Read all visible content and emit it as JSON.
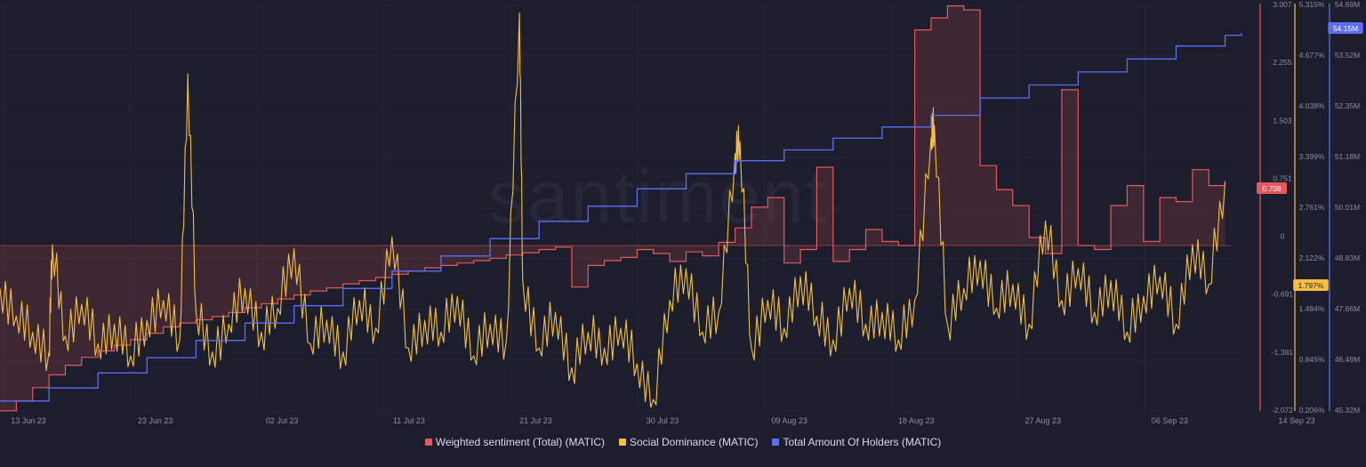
{
  "chart_data": {
    "type": "line",
    "watermark": "santiment",
    "x_ticks": [
      "13 Jun 23",
      "23 Jun 23",
      "02 Jul 23",
      "11 Jul 23",
      "21 Jul 23",
      "30 Jul 23",
      "09 Aug 23",
      "18 Aug 23",
      "27 Aug 23",
      "06 Sep 23",
      "14 Sep 23"
    ],
    "x_range": [
      "13 Jun 23",
      "14 Sep 23"
    ],
    "axes": {
      "sentiment": {
        "ticks": [
          "3.007",
          "2.255",
          "1.503",
          "0.751",
          "0",
          "-0.691",
          "-1.381",
          "-2.072"
        ],
        "range": [
          -2.072,
          3.007
        ],
        "color": "#e5585a"
      },
      "dominance": {
        "ticks": [
          "5.315%",
          "4.677%",
          "4.038%",
          "3.399%",
          "2.761%",
          "2.122%",
          "1.484%",
          "0.845%",
          "0.206%"
        ],
        "range": [
          0.206,
          5.315
        ],
        "color": "#f5c042"
      },
      "holders": {
        "ticks": [
          "54.69M",
          "53.52M",
          "52.35M",
          "51.18M",
          "50.01M",
          "48.83M",
          "47.66M",
          "46.49M",
          "45.32M"
        ],
        "range": [
          45.32,
          54.69
        ],
        "color": "#5b6ef5"
      }
    },
    "badges": {
      "sentiment": "0.708",
      "dominance": "1.797%",
      "holders": "54.15M"
    },
    "series": [
      {
        "name": "Weighted sentiment (Total) (MATIC)",
        "color": "#e5585a",
        "axis": "sentiment",
        "points": [
          [
            0,
            -2.07
          ],
          [
            1,
            -1.95
          ],
          [
            2,
            -1.78
          ],
          [
            3,
            -1.62
          ],
          [
            4,
            -1.5
          ],
          [
            5,
            -1.4
          ],
          [
            6,
            -1.32
          ],
          [
            7,
            -1.25
          ],
          [
            8,
            -1.18
          ],
          [
            9,
            -1.1
          ],
          [
            10,
            -1.02
          ],
          [
            11,
            -0.97
          ],
          [
            12,
            -0.93
          ],
          [
            13,
            -0.89
          ],
          [
            14,
            -0.84
          ],
          [
            15,
            -0.78
          ],
          [
            16,
            -0.73
          ],
          [
            17,
            -0.67
          ],
          [
            18,
            -0.62
          ],
          [
            19,
            -0.57
          ],
          [
            20,
            -0.53
          ],
          [
            21,
            -0.48
          ],
          [
            22,
            -0.44
          ],
          [
            23,
            -0.4
          ],
          [
            24,
            -0.36
          ],
          [
            25,
            -0.32
          ],
          [
            26,
            -0.28
          ],
          [
            27,
            -0.25
          ],
          [
            28,
            -0.22
          ],
          [
            29,
            -0.19
          ],
          [
            30,
            -0.16
          ],
          [
            31,
            -0.12
          ],
          [
            32,
            -0.09
          ],
          [
            33,
            -0.05
          ],
          [
            34,
            -0.02
          ],
          [
            35,
            -0.52
          ],
          [
            36,
            -0.25
          ],
          [
            37,
            -0.19
          ],
          [
            38,
            -0.15
          ],
          [
            39,
            -0.05
          ],
          [
            40,
            -0.1
          ],
          [
            41,
            -0.2
          ],
          [
            42,
            -0.08
          ],
          [
            43,
            -0.13
          ],
          [
            44,
            0.04
          ],
          [
            45,
            0.22
          ],
          [
            46,
            0.48
          ],
          [
            47,
            0.6
          ],
          [
            48,
            -0.22
          ],
          [
            49,
            -0.05
          ],
          [
            50,
            0.98
          ],
          [
            51,
            -0.2
          ],
          [
            52,
            -0.05
          ],
          [
            53,
            0.2
          ],
          [
            54,
            0.05
          ],
          [
            55,
            0.0
          ],
          [
            56,
            2.7
          ],
          [
            57,
            2.85
          ],
          [
            58,
            3.0
          ],
          [
            59,
            2.95
          ],
          [
            60,
            1.0
          ],
          [
            61,
            0.7
          ],
          [
            62,
            0.5
          ],
          [
            63,
            0.1
          ],
          [
            64,
            -0.1
          ],
          [
            65,
            1.95
          ],
          [
            66,
            0.0
          ],
          [
            67,
            -0.05
          ],
          [
            68,
            0.5
          ],
          [
            69,
            0.75
          ],
          [
            70,
            0.05
          ],
          [
            71,
            0.6
          ],
          [
            72,
            0.55
          ],
          [
            73,
            0.95
          ],
          [
            74,
            0.75
          ]
        ]
      },
      {
        "name": "Social Dominance (MATIC)",
        "color": "#f5c042",
        "axis": "dominance",
        "points": [
          [
            0,
            1.75
          ],
          [
            1,
            1.4
          ],
          [
            2,
            1.2
          ],
          [
            3,
            0.95
          ],
          [
            4,
            1.15
          ],
          [
            5,
            1.55
          ],
          [
            6,
            1.05
          ],
          [
            7,
            1.3
          ],
          [
            8,
            0.9
          ],
          [
            9,
            1.35
          ],
          [
            10,
            1.6
          ],
          [
            11,
            1.1
          ],
          [
            12,
            1.45
          ],
          [
            13,
            0.95
          ],
          [
            14,
            1.3
          ],
          [
            15,
            1.75
          ],
          [
            16,
            1.2
          ],
          [
            17,
            1.5
          ],
          [
            18,
            2.25
          ],
          [
            19,
            1.05
          ],
          [
            20,
            1.35
          ],
          [
            21,
            0.95
          ],
          [
            22,
            1.6
          ],
          [
            23,
            1.25
          ],
          [
            24,
            2.4
          ],
          [
            25,
            1.0
          ],
          [
            26,
            1.35
          ],
          [
            27,
            1.2
          ],
          [
            28,
            1.65
          ],
          [
            29,
            0.9
          ],
          [
            30,
            1.3
          ],
          [
            31,
            1.1
          ],
          [
            32,
            1.85
          ],
          [
            33,
            1.0
          ],
          [
            34,
            1.45
          ],
          [
            35,
            0.75
          ],
          [
            36,
            1.2
          ],
          [
            37,
            1.0
          ],
          [
            38,
            1.25
          ],
          [
            39,
            0.8
          ],
          [
            40,
            0.35
          ],
          [
            41,
            1.6
          ],
          [
            42,
            2.0
          ],
          [
            43,
            1.2
          ],
          [
            44,
            1.45
          ],
          [
            45,
            3.45
          ],
          [
            46,
            1.0
          ],
          [
            47,
            1.6
          ],
          [
            48,
            1.25
          ],
          [
            49,
            1.9
          ],
          [
            50,
            1.4
          ],
          [
            51,
            1.1
          ],
          [
            52,
            1.75
          ],
          [
            53,
            1.3
          ],
          [
            54,
            1.45
          ],
          [
            55,
            1.1
          ],
          [
            56,
            1.6
          ],
          [
            57,
            3.65
          ],
          [
            58,
            1.3
          ],
          [
            59,
            1.75
          ],
          [
            60,
            2.1
          ],
          [
            61,
            1.5
          ],
          [
            62,
            1.8
          ],
          [
            63,
            1.3
          ],
          [
            64,
            2.6
          ],
          [
            65,
            1.6
          ],
          [
            66,
            2.0
          ],
          [
            67,
            1.45
          ],
          [
            68,
            1.85
          ],
          [
            69,
            1.2
          ],
          [
            70,
            1.65
          ],
          [
            71,
            1.9
          ],
          [
            72,
            1.3
          ],
          [
            73,
            2.3
          ],
          [
            74,
            1.8
          ]
        ],
        "spikes": [
          [
            3.2,
            2.3
          ],
          [
            11.5,
            4.45
          ],
          [
            31.8,
            5.22
          ],
          [
            45.3,
            3.6
          ],
          [
            57.2,
            3.8
          ],
          [
            75.0,
            3.1
          ]
        ]
      },
      {
        "name": "Total Amount Of Holders (MATIC)",
        "color": "#5b6ef5",
        "axis": "holders",
        "points": [
          [
            0,
            45.55
          ],
          [
            3,
            45.85
          ],
          [
            6,
            46.2
          ],
          [
            9,
            46.55
          ],
          [
            12,
            46.95
          ],
          [
            15,
            47.35
          ],
          [
            18,
            47.75
          ],
          [
            21,
            48.15
          ],
          [
            24,
            48.55
          ],
          [
            27,
            48.9
          ],
          [
            30,
            49.3
          ],
          [
            33,
            49.7
          ],
          [
            36,
            50.05
          ],
          [
            39,
            50.45
          ],
          [
            42,
            50.8
          ],
          [
            45,
            51.1
          ],
          [
            48,
            51.35
          ],
          [
            51,
            51.62
          ],
          [
            54,
            51.88
          ],
          [
            57,
            52.15
          ],
          [
            60,
            52.55
          ],
          [
            63,
            52.85
          ],
          [
            66,
            53.15
          ],
          [
            69,
            53.45
          ],
          [
            72,
            53.75
          ],
          [
            75,
            54.0
          ],
          [
            76,
            54.05
          ]
        ]
      }
    ]
  }
}
